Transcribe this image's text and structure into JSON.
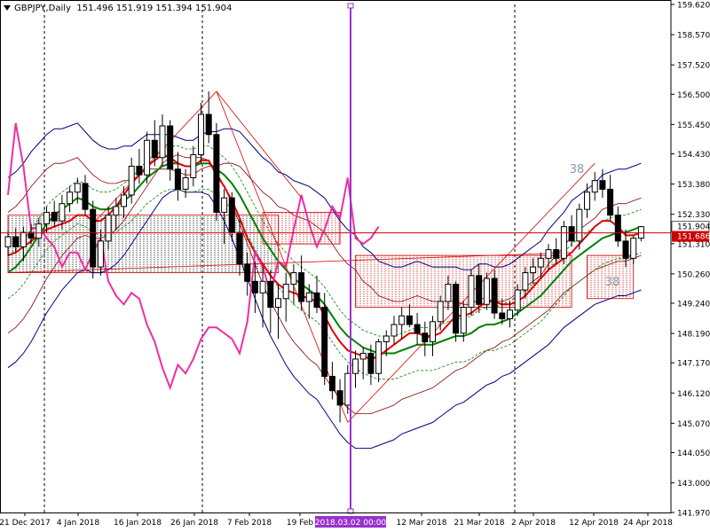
{
  "header": {
    "symbol_label": "GBPJPY,Daily",
    "ohlc_label": "151.496 151.919 151.394 151.904"
  },
  "chart_data": {
    "type": "candlestick",
    "y_ticks": [
      "159.620",
      "158.570",
      "157.520",
      "156.500",
      "155.450",
      "154.430",
      "153.380",
      "152.330",
      "151.310",
      "150.260",
      "149.240",
      "148.190",
      "147.170",
      "146.120",
      "145.070",
      "144.050",
      "143.000",
      "141.970"
    ],
    "x_ticks": [
      "21 Dec 2017",
      "4 Jan 2018",
      "16 Jan 2018",
      "26 Jan 2018",
      "7 Feb 2018",
      "19 Feb",
      "12 Mar 2018",
      "21 Mar 2018",
      "2 Apr 2018",
      "12 Apr 2018",
      "24 Apr 2018"
    ],
    "ylim": [
      141.97,
      159.62
    ],
    "price_labels": {
      "current": "151.904",
      "level": "151.686"
    },
    "cursor_date_label": "2018.03.02 00:00",
    "annotations": [
      "38",
      "38"
    ],
    "colors": {
      "bollinger": "#00007f",
      "envelope": "#8b0000",
      "ma_red": "#e00000",
      "ma_green": "#008000",
      "magenta": "#ee2fa0",
      "cursor": "#9932cc",
      "level_line": "#cc0000",
      "zone": "#cc0000"
    },
    "candles": [
      {
        "o": 151.2,
        "h": 151.75,
        "l": 150.9,
        "c": 151.55
      },
      {
        "o": 151.55,
        "h": 151.85,
        "l": 151.0,
        "c": 151.2
      },
      {
        "o": 151.2,
        "h": 151.9,
        "l": 150.7,
        "c": 151.7
      },
      {
        "o": 151.7,
        "h": 152.0,
        "l": 151.3,
        "c": 151.5
      },
      {
        "o": 151.5,
        "h": 152.2,
        "l": 151.2,
        "c": 152.0
      },
      {
        "o": 152.0,
        "h": 152.6,
        "l": 151.7,
        "c": 152.4
      },
      {
        "o": 152.4,
        "h": 152.8,
        "l": 151.9,
        "c": 152.1
      },
      {
        "o": 152.1,
        "h": 153.0,
        "l": 151.8,
        "c": 152.7
      },
      {
        "o": 152.7,
        "h": 153.3,
        "l": 152.4,
        "c": 153.1
      },
      {
        "o": 153.1,
        "h": 153.6,
        "l": 152.7,
        "c": 153.4
      },
      {
        "o": 153.4,
        "h": 153.7,
        "l": 152.3,
        "c": 152.5
      },
      {
        "o": 152.5,
        "h": 152.8,
        "l": 150.1,
        "c": 150.5
      },
      {
        "o": 150.5,
        "h": 151.8,
        "l": 150.2,
        "c": 151.4
      },
      {
        "o": 151.4,
        "h": 152.6,
        "l": 151.1,
        "c": 152.3
      },
      {
        "o": 152.3,
        "h": 152.9,
        "l": 151.8,
        "c": 152.6
      },
      {
        "o": 152.6,
        "h": 153.3,
        "l": 152.2,
        "c": 153.0
      },
      {
        "o": 153.0,
        "h": 154.3,
        "l": 152.7,
        "c": 154.0
      },
      {
        "o": 154.0,
        "h": 154.6,
        "l": 153.4,
        "c": 153.7
      },
      {
        "o": 153.7,
        "h": 155.2,
        "l": 153.4,
        "c": 154.9
      },
      {
        "o": 154.9,
        "h": 155.6,
        "l": 154.0,
        "c": 154.3
      },
      {
        "o": 154.3,
        "h": 155.8,
        "l": 154.0,
        "c": 155.4
      },
      {
        "o": 155.4,
        "h": 155.6,
        "l": 153.5,
        "c": 153.9
      },
      {
        "o": 153.9,
        "h": 154.5,
        "l": 152.8,
        "c": 153.2
      },
      {
        "o": 153.2,
        "h": 153.9,
        "l": 152.9,
        "c": 153.6
      },
      {
        "o": 153.6,
        "h": 154.7,
        "l": 153.3,
        "c": 154.4
      },
      {
        "o": 154.4,
        "h": 156.2,
        "l": 154.1,
        "c": 155.8
      },
      {
        "o": 155.8,
        "h": 156.6,
        "l": 154.8,
        "c": 155.1
      },
      {
        "o": 155.1,
        "h": 155.5,
        "l": 152.1,
        "c": 152.4
      },
      {
        "o": 152.4,
        "h": 153.2,
        "l": 151.3,
        "c": 152.9
      },
      {
        "o": 152.9,
        "h": 153.1,
        "l": 151.4,
        "c": 151.7
      },
      {
        "o": 151.7,
        "h": 152.1,
        "l": 150.2,
        "c": 150.6
      },
      {
        "o": 150.6,
        "h": 151.0,
        "l": 149.5,
        "c": 150.0
      },
      {
        "o": 150.0,
        "h": 150.7,
        "l": 148.9,
        "c": 149.6
      },
      {
        "o": 149.6,
        "h": 150.5,
        "l": 148.4,
        "c": 150.0
      },
      {
        "o": 150.0,
        "h": 150.4,
        "l": 148.2,
        "c": 149.1
      },
      {
        "o": 149.1,
        "h": 149.9,
        "l": 148.0,
        "c": 149.4
      },
      {
        "o": 149.4,
        "h": 150.3,
        "l": 148.6,
        "c": 149.9
      },
      {
        "o": 149.9,
        "h": 150.6,
        "l": 149.2,
        "c": 150.3
      },
      {
        "o": 150.3,
        "h": 150.9,
        "l": 149.0,
        "c": 149.3
      },
      {
        "o": 149.3,
        "h": 149.9,
        "l": 148.7,
        "c": 149.6
      },
      {
        "o": 149.6,
        "h": 150.2,
        "l": 148.9,
        "c": 149.1
      },
      {
        "o": 149.1,
        "h": 149.6,
        "l": 146.4,
        "c": 146.7
      },
      {
        "o": 146.7,
        "h": 147.2,
        "l": 145.9,
        "c": 146.2
      },
      {
        "o": 146.2,
        "h": 146.6,
        "l": 145.1,
        "c": 145.7
      },
      {
        "o": 145.7,
        "h": 147.1,
        "l": 145.4,
        "c": 146.8
      },
      {
        "o": 146.8,
        "h": 147.6,
        "l": 146.3,
        "c": 147.3
      },
      {
        "o": 147.3,
        "h": 147.7,
        "l": 146.6,
        "c": 147.5
      },
      {
        "o": 147.5,
        "h": 147.8,
        "l": 146.4,
        "c": 146.8
      },
      {
        "o": 146.8,
        "h": 148.0,
        "l": 146.5,
        "c": 147.9
      },
      {
        "o": 147.9,
        "h": 148.3,
        "l": 147.4,
        "c": 148.1
      },
      {
        "o": 148.1,
        "h": 148.8,
        "l": 147.8,
        "c": 148.5
      },
      {
        "o": 148.5,
        "h": 149.1,
        "l": 148.0,
        "c": 148.8
      },
      {
        "o": 148.8,
        "h": 149.2,
        "l": 148.4,
        "c": 148.5
      },
      {
        "o": 148.5,
        "h": 148.9,
        "l": 147.8,
        "c": 148.2
      },
      {
        "o": 148.2,
        "h": 148.6,
        "l": 147.4,
        "c": 147.9
      },
      {
        "o": 147.9,
        "h": 148.8,
        "l": 147.4,
        "c": 148.6
      },
      {
        "o": 148.6,
        "h": 149.5,
        "l": 148.3,
        "c": 149.3
      },
      {
        "o": 149.3,
        "h": 150.2,
        "l": 149.0,
        "c": 149.9
      },
      {
        "o": 149.9,
        "h": 150.0,
        "l": 147.9,
        "c": 148.2
      },
      {
        "o": 148.2,
        "h": 149.3,
        "l": 147.9,
        "c": 149.1
      },
      {
        "o": 149.1,
        "h": 150.4,
        "l": 148.8,
        "c": 150.2
      },
      {
        "o": 150.2,
        "h": 150.6,
        "l": 148.9,
        "c": 149.2
      },
      {
        "o": 149.2,
        "h": 150.3,
        "l": 149.0,
        "c": 150.1
      },
      {
        "o": 150.1,
        "h": 150.4,
        "l": 148.7,
        "c": 148.9
      },
      {
        "o": 148.9,
        "h": 149.4,
        "l": 148.5,
        "c": 148.7
      },
      {
        "o": 148.7,
        "h": 149.3,
        "l": 148.4,
        "c": 149.0
      },
      {
        "o": 149.0,
        "h": 149.9,
        "l": 148.8,
        "c": 149.7
      },
      {
        "o": 149.7,
        "h": 150.5,
        "l": 149.4,
        "c": 150.3
      },
      {
        "o": 150.3,
        "h": 150.8,
        "l": 149.9,
        "c": 150.5
      },
      {
        "o": 150.5,
        "h": 151.0,
        "l": 150.1,
        "c": 150.8
      },
      {
        "o": 150.8,
        "h": 151.3,
        "l": 150.4,
        "c": 151.1
      },
      {
        "o": 151.1,
        "h": 151.5,
        "l": 150.6,
        "c": 150.8
      },
      {
        "o": 150.8,
        "h": 152.1,
        "l": 150.6,
        "c": 151.9
      },
      {
        "o": 151.9,
        "h": 152.3,
        "l": 151.2,
        "c": 151.4
      },
      {
        "o": 151.4,
        "h": 152.7,
        "l": 151.1,
        "c": 152.5
      },
      {
        "o": 152.5,
        "h": 153.4,
        "l": 152.2,
        "c": 153.1
      },
      {
        "o": 153.1,
        "h": 153.8,
        "l": 152.8,
        "c": 153.5
      },
      {
        "o": 153.5,
        "h": 153.9,
        "l": 152.9,
        "c": 153.2
      },
      {
        "o": 153.2,
        "h": 153.7,
        "l": 152.1,
        "c": 152.3
      },
      {
        "o": 152.3,
        "h": 152.6,
        "l": 151.2,
        "c": 151.4
      },
      {
        "o": 151.4,
        "h": 151.8,
        "l": 150.5,
        "c": 150.8
      },
      {
        "o": 150.8,
        "h": 151.6,
        "l": 150.6,
        "c": 151.5
      },
      {
        "o": 151.5,
        "h": 151.92,
        "l": 151.39,
        "c": 151.9
      }
    ],
    "series": [
      {
        "values": [
          150.3,
          150.5,
          150.8,
          151.2,
          151.6,
          152.0,
          152.3,
          152.5,
          152.7,
          152.9,
          152.8,
          152.6,
          152.5,
          152.5,
          152.6,
          152.8,
          153.0,
          153.3,
          153.6,
          153.8,
          154.0,
          154.1,
          154.1,
          154.0,
          154.0,
          154.1,
          154.1,
          153.9,
          153.7,
          153.4,
          153.0,
          152.5,
          152.0,
          151.5,
          151.1,
          150.7,
          150.4,
          150.1,
          149.9,
          149.7,
          149.5,
          149.2,
          148.8,
          148.4,
          148.1,
          147.9,
          147.7,
          147.6,
          147.5,
          147.5,
          147.5,
          147.6,
          147.7,
          147.8,
          147.8,
          147.8,
          147.9,
          148.0,
          148.1,
          148.1,
          148.2,
          148.4,
          148.5,
          148.5,
          148.6,
          148.7,
          148.9,
          149.1,
          149.3,
          149.5,
          149.8,
          150.1,
          150.4,
          150.7,
          150.9,
          151.1,
          151.3,
          151.5,
          151.6,
          151.7,
          151.7,
          151.8,
          151.9
        ]
      },
      {
        "values": [
          150.9,
          151.0,
          151.2,
          151.4,
          151.6,
          151.8,
          151.9,
          152.0,
          152.1,
          152.3,
          152.3,
          152.1,
          152.1,
          152.3,
          152.6,
          153.0,
          153.4,
          153.7,
          154.0,
          154.2,
          154.4,
          154.3,
          154.1,
          154.0,
          154.0,
          154.2,
          154.2,
          153.7,
          153.3,
          152.8,
          152.2,
          151.5,
          151.0,
          150.6,
          150.2,
          149.9,
          149.7,
          149.6,
          149.5,
          149.4,
          149.3,
          148.8,
          148.3,
          147.9,
          147.6,
          147.5,
          147.4,
          147.3,
          147.4,
          147.6,
          147.8,
          148.0,
          148.2,
          148.2,
          148.1,
          148.1,
          148.2,
          148.5,
          148.8,
          148.8,
          148.9,
          149.1,
          149.3,
          149.3,
          149.2,
          149.2,
          149.3,
          149.5,
          149.8,
          150.1,
          150.4,
          150.6,
          150.8,
          151.0,
          151.3,
          151.6,
          151.9,
          152.1,
          152.1,
          151.9,
          151.6,
          151.6,
          151.7
        ]
      },
      {
        "values": [
          147.0,
          147.2,
          147.5,
          147.9,
          148.4,
          148.9,
          149.3,
          149.7,
          150.0,
          150.3,
          150.4,
          150.3,
          150.3,
          150.4,
          150.6,
          150.9,
          151.3,
          151.7,
          152.1,
          152.5,
          152.9,
          153.1,
          153.2,
          153.1,
          153.1,
          153.1,
          153.0,
          152.6,
          152.1,
          151.5,
          150.8,
          150.1,
          149.4,
          148.7,
          148.1,
          147.6,
          147.1,
          146.7,
          146.4,
          146.1,
          145.9,
          145.5,
          145.1,
          144.7,
          144.4,
          144.2,
          144.2,
          144.2,
          144.3,
          144.4,
          144.5,
          144.7,
          144.8,
          144.9,
          145.0,
          145.1,
          145.3,
          145.5,
          145.7,
          145.8,
          146.0,
          146.2,
          146.4,
          146.5,
          146.7,
          146.8,
          147.0,
          147.2,
          147.4,
          147.6,
          147.8,
          148.1,
          148.4,
          148.6,
          148.8,
          149.0,
          149.2,
          149.3,
          149.4,
          149.5,
          149.5,
          149.6,
          149.7
        ]
      },
      {
        "values": [
          153.6,
          153.8,
          154.1,
          154.5,
          154.8,
          155.1,
          155.3,
          155.3,
          155.4,
          155.5,
          155.2,
          154.9,
          154.7,
          154.6,
          154.6,
          154.7,
          154.7,
          154.9,
          155.1,
          155.1,
          155.1,
          155.1,
          155.0,
          154.9,
          154.9,
          155.1,
          155.2,
          155.2,
          155.3,
          155.3,
          155.2,
          154.9,
          154.6,
          154.3,
          154.1,
          153.8,
          153.7,
          153.5,
          153.4,
          153.3,
          153.1,
          152.9,
          152.5,
          152.1,
          151.8,
          151.6,
          151.2,
          151.0,
          150.7,
          150.6,
          150.5,
          150.5,
          150.6,
          150.7,
          150.6,
          150.5,
          150.5,
          150.5,
          150.5,
          150.4,
          150.4,
          150.6,
          150.6,
          150.5,
          150.5,
          150.6,
          150.8,
          151.0,
          151.2,
          151.4,
          151.8,
          152.1,
          152.4,
          152.8,
          153.0,
          153.2,
          153.4,
          153.7,
          153.8,
          153.9,
          153.9,
          154.0,
          154.1
        ]
      }
    ]
  }
}
